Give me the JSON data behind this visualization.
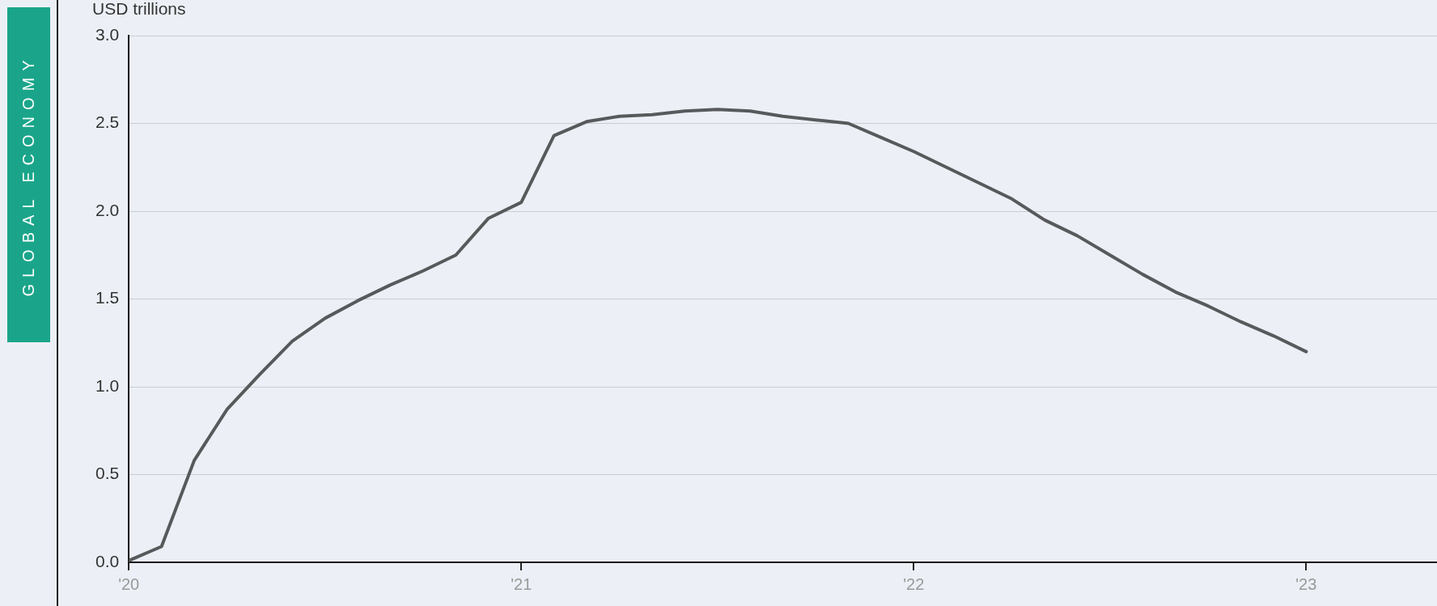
{
  "chart_data": {
    "type": "line",
    "ylabel": "USD trillions",
    "annotations": [
      "GLOBAL ECONOMY"
    ],
    "x": [
      "2020-01",
      "2020-02",
      "2020-03",
      "2020-04",
      "2020-05",
      "2020-06",
      "2020-07",
      "2020-08",
      "2020-09",
      "2020-10",
      "2020-11",
      "2020-12",
      "2021-01",
      "2021-02",
      "2021-03",
      "2021-04",
      "2021-05",
      "2021-06",
      "2021-07",
      "2021-08",
      "2021-09",
      "2021-10",
      "2021-11",
      "2021-12",
      "2022-01",
      "2022-02",
      "2022-03",
      "2022-04",
      "2022-05",
      "2022-06",
      "2022-07",
      "2022-08",
      "2022-09",
      "2022-10",
      "2022-11",
      "2022-12",
      "2023-01"
    ],
    "series": [
      {
        "color": "#58595b",
        "values": [
          0.01,
          0.09,
          0.58,
          0.87,
          1.07,
          1.26,
          1.39,
          1.49,
          1.58,
          1.66,
          1.75,
          1.96,
          2.05,
          2.43,
          2.51,
          2.54,
          2.55,
          2.57,
          2.58,
          2.57,
          2.54,
          2.52,
          2.5,
          2.42,
          2.34,
          2.25,
          2.16,
          2.07,
          1.95,
          1.86,
          1.75,
          1.64,
          1.54,
          1.46,
          1.37,
          1.29,
          1.2
        ]
      }
    ],
    "xlim": [
      "2020-01",
      "2023-05"
    ],
    "xticks": [
      {
        "value": "2020-01",
        "label": "'20"
      },
      {
        "value": "2021-01",
        "label": "'21"
      },
      {
        "value": "2022-01",
        "label": "'22"
      },
      {
        "value": "2023-01",
        "label": "'23"
      }
    ],
    "ylim": [
      0,
      3
    ],
    "yticks": [
      {
        "value": 0,
        "label": "0.0"
      },
      {
        "value": 0.5,
        "label": "0.5"
      },
      {
        "value": 1,
        "label": "1.0"
      },
      {
        "value": 1.5,
        "label": "1.5"
      },
      {
        "value": 2,
        "label": "2.0"
      },
      {
        "value": 2.5,
        "label": "2.5"
      },
      {
        "value": 3,
        "label": "3.0"
      }
    ],
    "grid": "y",
    "legend": false,
    "marker": "none",
    "line_style": "solid"
  }
}
